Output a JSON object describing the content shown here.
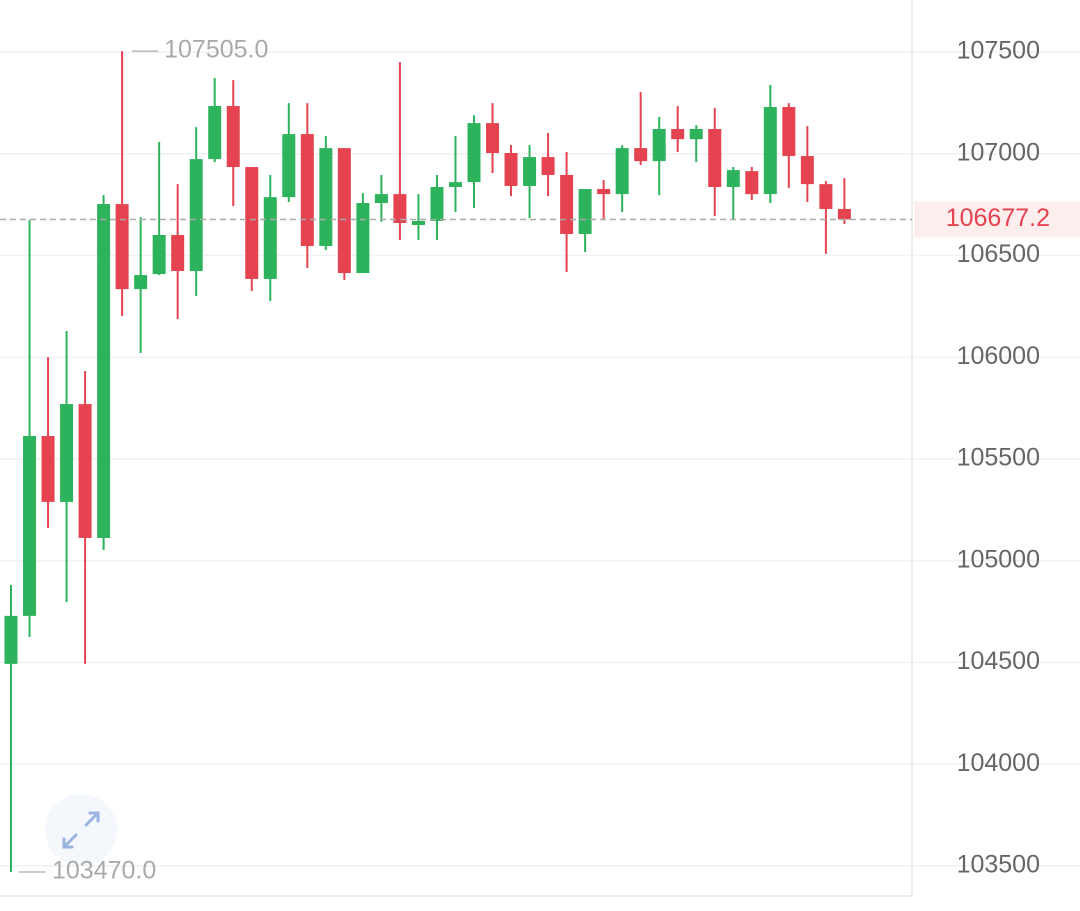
{
  "chart_data": {
    "type": "candlestick",
    "open": [
      104493,
      104729,
      105613,
      105289,
      105770,
      105112,
      106753,
      106335,
      106409,
      106601,
      106424,
      106974,
      107235,
      106935,
      106385,
      106787,
      107097,
      106547,
      107028,
      106414,
      106758,
      106802,
      106650,
      106670,
      106837,
      106861,
      107151,
      107004,
      106842,
      106984,
      106896,
      106606,
      106827,
      106802,
      107028,
      106964,
      107122,
      107072,
      107122,
      106837,
      106915,
      106802,
      107230,
      106989,
      106851,
      106729
    ],
    "high": [
      104881,
      106674,
      106001,
      106129,
      105932,
      106797,
      107505,
      106689,
      107058,
      106851,
      107131,
      107372,
      107362,
      106935,
      106896,
      107249,
      107249,
      107087,
      107028,
      106807,
      106896,
      107451,
      106802,
      106896,
      107087,
      107190,
      107249,
      107043,
      107043,
      107102,
      107009,
      106827,
      106871,
      107043,
      107303,
      107181,
      107235,
      107141,
      107225,
      106935,
      106935,
      107338,
      107249,
      107136,
      106866,
      106881
    ],
    "low": [
      103470,
      104625,
      105161,
      104797,
      104493,
      105053,
      106203,
      106021,
      106404,
      106188,
      106301,
      106959,
      106743,
      106326,
      106276,
      106763,
      106439,
      106527,
      106380,
      106414,
      106665,
      106576,
      106576,
      106576,
      106714,
      106733,
      106905,
      106792,
      106684,
      106792,
      106419,
      106517,
      106679,
      106714,
      106945,
      106797,
      107009,
      106959,
      106694,
      106674,
      106773,
      106758,
      106832,
      106763,
      106508,
      106655
    ],
    "close": [
      104729,
      105613,
      105289,
      105770,
      105112,
      106753,
      106335,
      106404,
      106601,
      106424,
      106974,
      107235,
      106935,
      106385,
      106787,
      107097,
      106547,
      107028,
      106414,
      106758,
      106802,
      106660,
      106670,
      106837,
      106861,
      107151,
      107004,
      106842,
      106984,
      106896,
      106606,
      106827,
      106802,
      107028,
      106964,
      107122,
      107072,
      107122,
      106837,
      106920,
      106802,
      107230,
      106989,
      106851,
      106729,
      106677.2
    ],
    "up_color": "#2eb35d",
    "down_color": "#e4434f",
    "ylim": [
      103303,
      107756
    ],
    "yticks": [
      103500,
      104000,
      104500,
      105000,
      105500,
      106000,
      106500,
      107000,
      107500
    ],
    "grid": true,
    "last_price": 106677.2,
    "max_label": {
      "value": 107505,
      "label": "107505.0"
    },
    "min_label": {
      "value": 103470,
      "label": "103470.0"
    }
  }
}
